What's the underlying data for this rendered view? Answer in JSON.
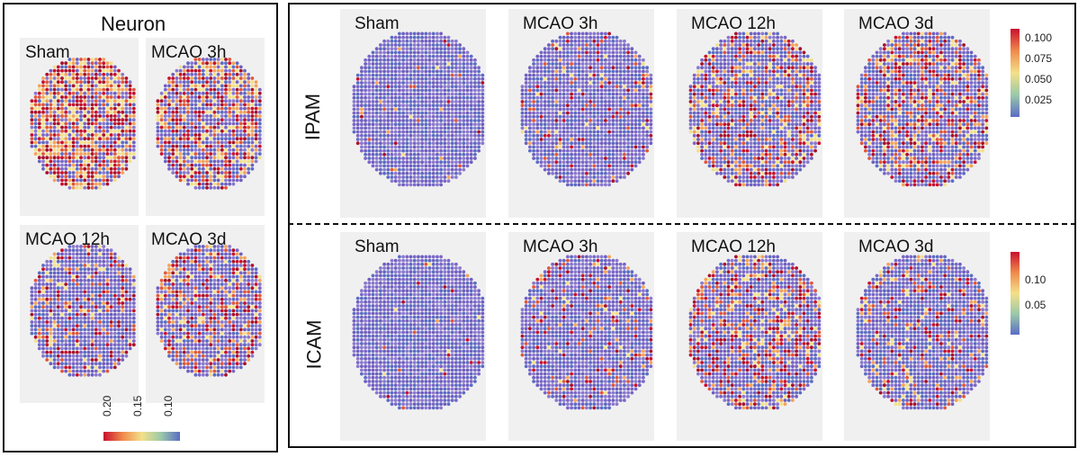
{
  "left_panel": {
    "title": "Neuron",
    "conditions": [
      "Sham",
      "MCAO 3h",
      "MCAO 12h",
      "MCAO 3d"
    ],
    "colorbar": {
      "ticks": [
        "0.20",
        "0.15",
        "0.10"
      ],
      "colors": [
        "#d7263d",
        "#f4a259",
        "#f3e08a",
        "#9bc9a8",
        "#5b6cc4"
      ]
    }
  },
  "right_panel": {
    "rows": [
      {
        "label": "IPAM",
        "conditions": [
          "Sham",
          "MCAO 3h",
          "MCAO 12h",
          "MCAO 3d"
        ],
        "colorbar_ticks": [
          "0.100",
          "0.075",
          "0.050",
          "0.025"
        ]
      },
      {
        "label": "ICAM",
        "conditions": [
          "Sham",
          "MCAO 3h",
          "MCAO 12h",
          "MCAO 3d"
        ],
        "colorbar_ticks": [
          "0.10",
          "0.05"
        ]
      }
    ],
    "colors": {
      "low": "#7a66c9",
      "mid": "#f3e08a",
      "high": "#c8102e"
    }
  }
}
